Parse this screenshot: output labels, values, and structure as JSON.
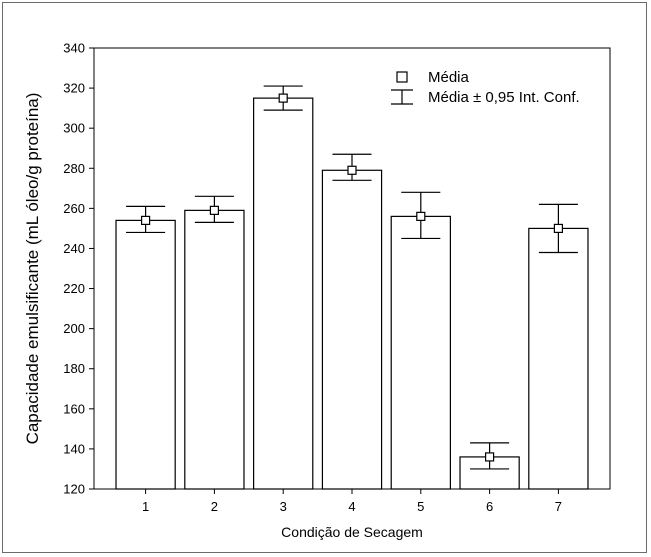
{
  "chart_data": {
    "type": "bar",
    "title": "",
    "xlabel": "Condição de Secagem",
    "ylabel": "Capacidade emulsificante (mL óleo/g proteína)",
    "categories": [
      "1",
      "2",
      "3",
      "4",
      "5",
      "6",
      "7"
    ],
    "series": [
      {
        "values": [
          254,
          259,
          315,
          279,
          256,
          136,
          250
        ],
        "ci_lower": [
          248,
          253,
          309,
          274,
          245,
          130,
          238
        ],
        "ci_upper": [
          261,
          266,
          321,
          287,
          268,
          143,
          262
        ]
      }
    ],
    "ylim": [
      120,
      340
    ],
    "yticks": [
      120,
      140,
      160,
      180,
      200,
      220,
      240,
      260,
      280,
      300,
      320,
      340
    ],
    "grid": false,
    "legend": {
      "position": "top-right",
      "entries": [
        {
          "symbol": "square-marker",
          "label": "Média"
        },
        {
          "symbol": "error-bar",
          "label": "Média ± 0,95 Int. Conf."
        }
      ]
    },
    "colors": {
      "bar_fill": "#ffffff",
      "stroke": "#000000"
    }
  }
}
